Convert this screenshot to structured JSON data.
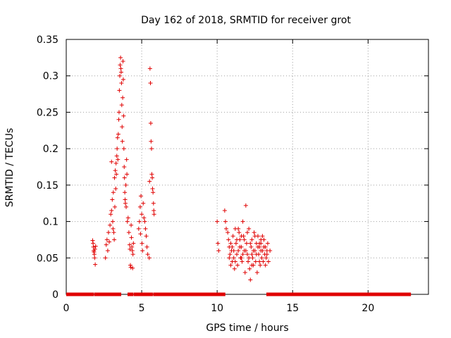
{
  "chart_data": {
    "type": "scatter",
    "title": "Day 162 of 2018, SRMTID for receiver grot",
    "xlabel": "GPS time / hours",
    "ylabel": "SRMTID / TECUs",
    "xlim": [
      0,
      24
    ],
    "ylim": [
      0,
      0.35
    ],
    "grid": true,
    "marker": "+",
    "x_ticks": [
      0,
      5,
      10,
      15,
      20
    ],
    "x_tick_labels": [
      "0",
      "5",
      "10",
      "15",
      "20"
    ],
    "y_ticks": [
      0,
      0.05,
      0.1,
      0.15,
      0.2,
      0.25,
      0.3,
      0.35
    ],
    "y_tick_labels": [
      "0",
      "0.05",
      "0.1",
      "0.15",
      "0.2",
      "0.25",
      "0.3",
      "0.35"
    ],
    "series": [
      {
        "name": "SRMTID",
        "color": "#e00000",
        "points": [
          [
            1.75,
            0.074
          ],
          [
            1.78,
            0.07
          ],
          [
            1.8,
            0.065
          ],
          [
            1.82,
            0.06
          ],
          [
            1.84,
            0.058
          ],
          [
            1.86,
            0.055
          ],
          [
            1.88,
            0.05
          ],
          [
            1.9,
            0.062
          ],
          [
            1.92,
            0.041
          ],
          [
            1.95,
            0.066
          ],
          [
            2.6,
            0.05
          ],
          [
            2.65,
            0.068
          ],
          [
            2.7,
            0.075
          ],
          [
            2.75,
            0.06
          ],
          [
            2.8,
            0.085
          ],
          [
            2.85,
            0.072
          ],
          [
            2.9,
            0.095
          ],
          [
            2.95,
            0.11
          ],
          [
            3.0,
            0.115
          ],
          [
            3.0,
            0.182
          ],
          [
            3.05,
            0.13
          ],
          [
            3.08,
            0.1
          ],
          [
            3.1,
            0.09
          ],
          [
            3.12,
            0.14
          ],
          [
            3.15,
            0.085
          ],
          [
            3.18,
            0.075
          ],
          [
            3.2,
            0.16
          ],
          [
            3.22,
            0.12
          ],
          [
            3.25,
            0.17
          ],
          [
            3.28,
            0.145
          ],
          [
            3.3,
            0.18
          ],
          [
            3.32,
            0.165
          ],
          [
            3.35,
            0.19
          ],
          [
            3.37,
            0.2
          ],
          [
            3.4,
            0.215
          ],
          [
            3.42,
            0.185
          ],
          [
            3.45,
            0.22
          ],
          [
            3.48,
            0.24
          ],
          [
            3.5,
            0.25
          ],
          [
            3.52,
            0.28
          ],
          [
            3.55,
            0.3
          ],
          [
            3.57,
            0.315
          ],
          [
            3.6,
            0.325
          ],
          [
            3.62,
            0.31
          ],
          [
            3.64,
            0.305
          ],
          [
            3.66,
            0.29
          ],
          [
            3.68,
            0.26
          ],
          [
            3.7,
            0.23
          ],
          [
            3.72,
            0.21
          ],
          [
            3.74,
            0.27
          ],
          [
            3.76,
            0.32
          ],
          [
            3.78,
            0.295
          ],
          [
            3.8,
            0.245
          ],
          [
            3.82,
            0.2
          ],
          [
            3.84,
            0.175
          ],
          [
            3.86,
            0.16
          ],
          [
            3.88,
            0.14
          ],
          [
            3.9,
            0.13
          ],
          [
            3.92,
            0.125
          ],
          [
            3.95,
            0.15
          ],
          [
            3.97,
            0.12
          ],
          [
            4.0,
            0.185
          ],
          [
            4.02,
            0.165
          ],
          [
            4.05,
            0.1
          ],
          [
            4.1,
            0.105
          ],
          [
            4.15,
            0.085
          ],
          [
            4.2,
            0.068
          ],
          [
            4.22,
            0.062
          ],
          [
            4.25,
            0.04
          ],
          [
            4.28,
            0.037
          ],
          [
            4.3,
            0.095
          ],
          [
            4.32,
            0.078
          ],
          [
            4.35,
            0.065
          ],
          [
            4.38,
            0.06
          ],
          [
            4.4,
            0.036
          ],
          [
            4.42,
            0.055
          ],
          [
            4.45,
            0.07
          ],
          [
            4.8,
            0.09
          ],
          [
            4.85,
            0.1
          ],
          [
            4.9,
            0.12
          ],
          [
            4.92,
            0.083
          ],
          [
            4.95,
            0.135
          ],
          [
            5.0,
            0.11
          ],
          [
            5.02,
            0.07
          ],
          [
            5.05,
            0.06
          ],
          [
            5.1,
            0.125
          ],
          [
            5.15,
            0.105
          ],
          [
            5.2,
            0.1
          ],
          [
            5.25,
            0.09
          ],
          [
            5.3,
            0.08
          ],
          [
            5.35,
            0.065
          ],
          [
            5.4,
            0.055
          ],
          [
            5.5,
            0.05
          ],
          [
            5.52,
            0.155
          ],
          [
            5.55,
            0.31
          ],
          [
            5.58,
            0.29
          ],
          [
            5.6,
            0.235
          ],
          [
            5.62,
            0.21
          ],
          [
            5.65,
            0.2
          ],
          [
            5.67,
            0.165
          ],
          [
            5.7,
            0.16
          ],
          [
            5.72,
            0.145
          ],
          [
            5.75,
            0.14
          ],
          [
            5.78,
            0.125
          ],
          [
            5.8,
            0.115
          ],
          [
            5.82,
            0.11
          ],
          [
            10.0,
            0.1
          ],
          [
            10.05,
            0.07
          ],
          [
            10.1,
            0.06
          ],
          [
            10.5,
            0.115
          ],
          [
            10.55,
            0.1
          ],
          [
            10.6,
            0.09
          ],
          [
            10.7,
            0.085
          ],
          [
            10.75,
            0.075
          ],
          [
            10.8,
            0.065
          ],
          [
            10.85,
            0.055
          ],
          [
            10.9,
            0.07
          ],
          [
            10.95,
            0.06
          ],
          [
            11.0,
            0.045
          ],
          [
            11.05,
            0.08
          ],
          [
            11.1,
            0.05
          ],
          [
            11.15,
            0.035
          ],
          [
            11.2,
            0.09
          ],
          [
            11.25,
            0.07
          ],
          [
            11.3,
            0.055
          ],
          [
            11.35,
            0.04
          ],
          [
            11.4,
            0.06
          ],
          [
            11.45,
            0.085
          ],
          [
            11.5,
            0.075
          ],
          [
            11.55,
            0.05
          ],
          [
            11.6,
            0.065
          ],
          [
            11.65,
            0.045
          ],
          [
            11.7,
            0.1
          ],
          [
            11.75,
            0.08
          ],
          [
            11.8,
            0.06
          ],
          [
            11.85,
            0.03
          ],
          [
            11.9,
            0.122
          ],
          [
            11.95,
            0.07
          ],
          [
            12.0,
            0.055
          ],
          [
            12.05,
            0.045
          ],
          [
            12.1,
            0.09
          ],
          [
            12.15,
            0.035
          ],
          [
            12.2,
            0.02
          ],
          [
            12.25,
            0.065
          ],
          [
            12.3,
            0.075
          ],
          [
            12.35,
            0.05
          ],
          [
            12.4,
            0.04
          ],
          [
            12.45,
            0.085
          ],
          [
            12.5,
            0.06
          ],
          [
            12.55,
            0.045
          ],
          [
            12.6,
            0.07
          ],
          [
            12.65,
            0.03
          ],
          [
            12.7,
            0.08
          ],
          [
            12.75,
            0.055
          ],
          [
            12.8,
            0.065
          ],
          [
            12.85,
            0.04
          ],
          [
            12.9,
            0.07
          ],
          [
            12.95,
            0.05
          ],
          [
            13.0,
            0.06
          ],
          [
            13.05,
            0.045
          ],
          [
            13.1,
            0.075
          ],
          [
            13.15,
            0.055
          ],
          [
            13.2,
            0.065
          ],
          [
            13.25,
            0.05
          ],
          [
            13.3,
            0.06
          ],
          [
            13.35,
            0.07
          ],
          [
            13.4,
            0.045
          ],
          [
            13.5,
            0.06
          ],
          [
            11.0,
            0.065
          ],
          [
            11.3,
            0.075
          ],
          [
            11.6,
            0.05
          ],
          [
            11.9,
            0.06
          ],
          [
            12.2,
            0.07
          ],
          [
            12.5,
            0.08
          ],
          [
            12.8,
            0.045
          ],
          [
            13.1,
            0.065
          ],
          [
            10.8,
            0.05
          ],
          [
            11.4,
            0.09
          ],
          [
            11.7,
            0.055
          ],
          [
            12.0,
            0.085
          ],
          [
            12.3,
            0.04
          ],
          [
            12.6,
            0.055
          ],
          [
            12.9,
            0.06
          ],
          [
            13.2,
            0.04
          ],
          [
            11.1,
            0.06
          ],
          [
            11.8,
            0.075
          ],
          [
            12.4,
            0.06
          ],
          [
            12.7,
            0.065
          ],
          [
            11.2,
            0.045
          ],
          [
            11.5,
            0.065
          ],
          [
            12.1,
            0.05
          ],
          [
            12.9,
            0.075
          ],
          [
            13.0,
            0.08
          ],
          [
            10.9,
            0.04
          ],
          [
            11.6,
            0.08
          ],
          [
            12.3,
            0.055
          ],
          [
            12.8,
            0.07
          ],
          [
            13.3,
            0.055
          ]
        ]
      }
    ],
    "zero_segments": [
      [
        0.1,
        1.7
      ],
      [
        2.0,
        2.6
      ],
      [
        2.8,
        3.2
      ],
      [
        3.3,
        3.5
      ],
      [
        4.2,
        4.3
      ],
      [
        4.6,
        4.8
      ],
      [
        5.0,
        5.1
      ],
      [
        5.3,
        5.6
      ],
      [
        5.9,
        10.4
      ],
      [
        13.4,
        22.7
      ]
    ]
  }
}
